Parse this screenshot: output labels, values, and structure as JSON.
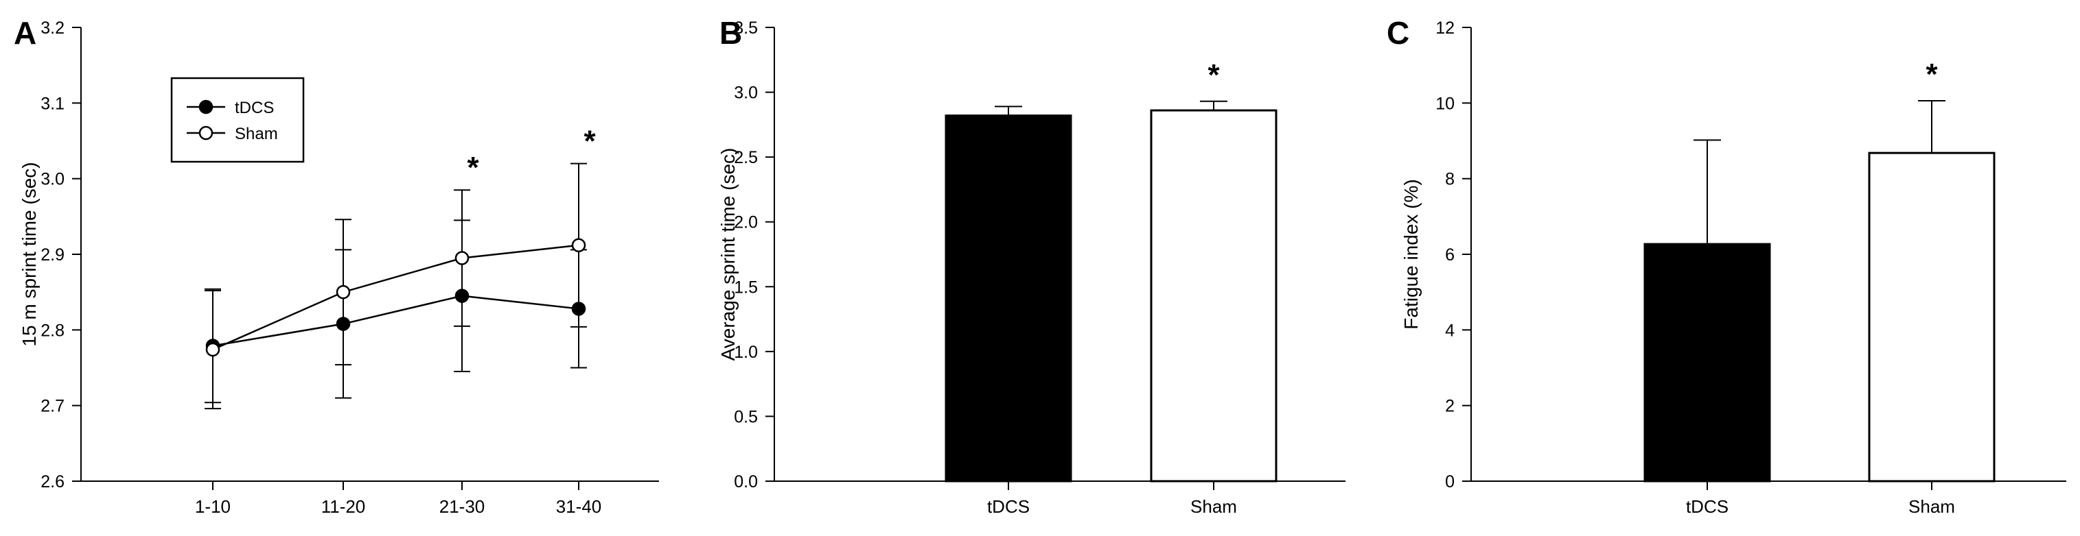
{
  "chart_data": [
    {
      "panel": "A",
      "type": "line",
      "ylabel": "15 m sprint time (sec)",
      "xlabel": "",
      "categories": [
        "1-10",
        "11-20",
        "21-30",
        "31-40"
      ],
      "ylim": [
        2.6,
        3.2
      ],
      "yticks": [
        "2.6",
        "2.7",
        "2.8",
        "2.9",
        "3.0",
        "3.1",
        "3.2"
      ],
      "legend_position": "top-left",
      "series": [
        {
          "name": "tDCS",
          "marker": "filled-circle",
          "values": [
            2.779,
            2.808,
            2.845,
            2.828
          ],
          "err": [
            0.075,
            0.098,
            0.1,
            0.078
          ]
        },
        {
          "name": "Sham",
          "marker": "open-circle",
          "values": [
            2.774,
            2.85,
            2.895,
            2.912
          ],
          "err": [
            0.078,
            0.096,
            0.09,
            0.108
          ]
        }
      ],
      "annotations": [
        {
          "text": "*",
          "category": "21-30"
        },
        {
          "text": "*",
          "category": "31-40"
        }
      ]
    },
    {
      "panel": "B",
      "type": "bar",
      "ylabel": "Average sprint time (sec)",
      "xlabel": "",
      "categories": [
        "tDCS",
        "Sham"
      ],
      "values": [
        2.82,
        2.86
      ],
      "err": [
        0.07,
        0.07
      ],
      "fills": [
        "#000000",
        "#ffffff"
      ],
      "ylim": [
        0,
        3.5
      ],
      "yticks": [
        "0.0",
        "0.5",
        "1.0",
        "1.5",
        "2.0",
        "2.5",
        "3.0",
        "3.5"
      ],
      "annotations": [
        {
          "text": "*",
          "category": "Sham"
        }
      ]
    },
    {
      "panel": "C",
      "type": "bar",
      "ylabel": "Fatigue index  (%)",
      "xlabel": "",
      "categories": [
        "tDCS",
        "Sham"
      ],
      "values": [
        6.27,
        8.68
      ],
      "err": [
        2.75,
        1.38
      ],
      "fills": [
        "#000000",
        "#ffffff"
      ],
      "ylim": [
        0,
        12
      ],
      "yticks": [
        "0",
        "2",
        "4",
        "6",
        "8",
        "10",
        "12"
      ],
      "annotations": [
        {
          "text": "*",
          "category": "Sham"
        }
      ]
    }
  ]
}
